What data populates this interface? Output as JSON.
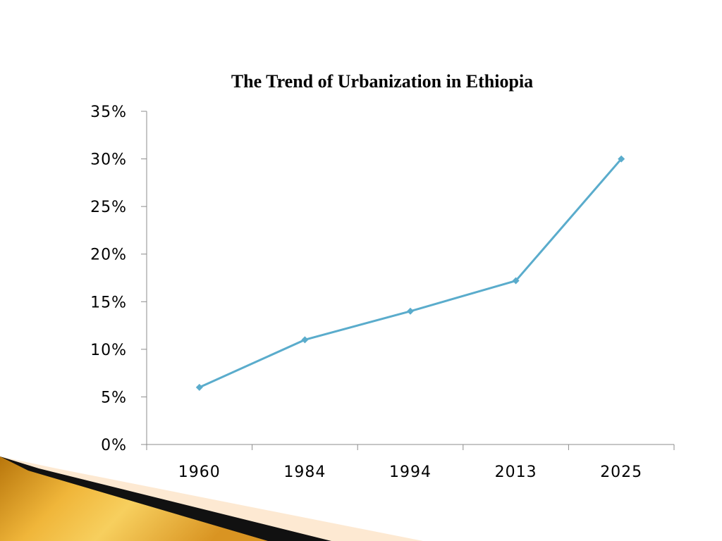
{
  "chart_data": {
    "type": "line",
    "title": "The Trend of Urbanization in Ethiopia",
    "xlabel": "",
    "ylabel": "",
    "categories": [
      "1960",
      "1984",
      "1994",
      "2013",
      "2025"
    ],
    "series": [
      {
        "values": [
          6,
          11,
          14,
          17.2,
          30
        ]
      }
    ],
    "y_unit": "%",
    "ylim": [
      0,
      35
    ],
    "y_ticks": [
      0,
      5,
      10,
      15,
      20,
      25,
      30,
      35
    ],
    "y_tick_labels": [
      "0%",
      "5%",
      "10%",
      "15%",
      "20%",
      "25%",
      "30%",
      "35%"
    ],
    "grid": false,
    "legend": "none",
    "colors": {
      "series_line": "#5aaccc",
      "axis": "#8c8c8c"
    }
  }
}
